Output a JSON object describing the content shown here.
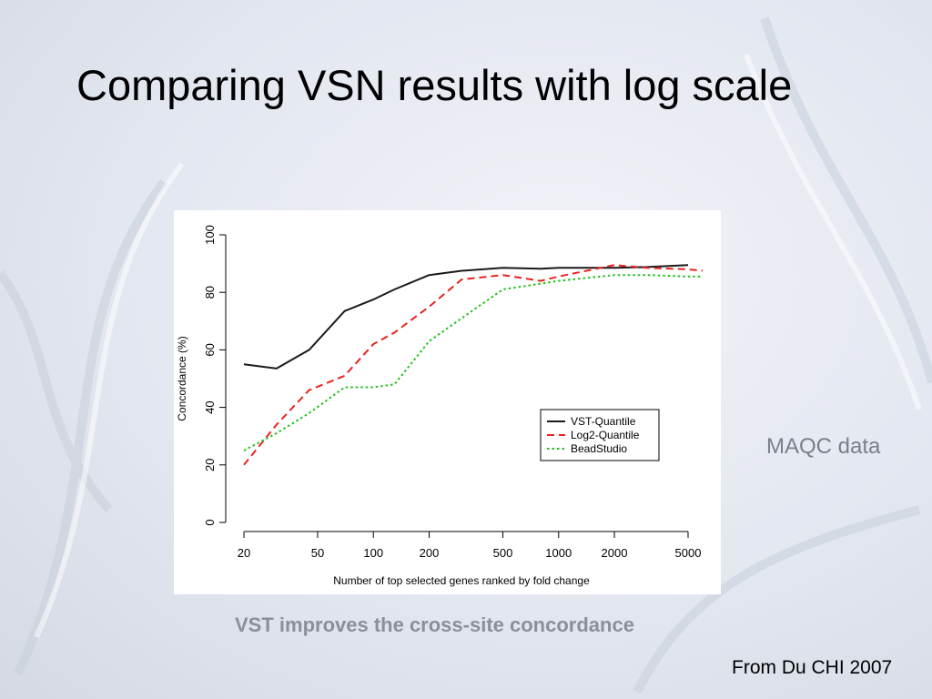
{
  "slide": {
    "title": "Comparing VSN results with log scale",
    "side_note": "MAQC data",
    "caption": "VST improves the cross-site concordance",
    "source": "From Du CHI 2007"
  },
  "chart_data": {
    "type": "line",
    "xlabel": "Number of top selected genes ranked by fold change",
    "ylabel": "Concordance (%)",
    "x_scale": "log",
    "xlim": [
      20,
      5000
    ],
    "ylim": [
      0,
      100
    ],
    "x_ticks": [
      20,
      50,
      100,
      200,
      500,
      1000,
      2000,
      5000
    ],
    "y_ticks": [
      0,
      20,
      40,
      60,
      80,
      100
    ],
    "grid": false,
    "legend_position": "center-right",
    "series": [
      {
        "name": "VST-Quantile",
        "color": "#1a1a1a",
        "dash": "solid",
        "x": [
          20,
          30,
          45,
          70,
          100,
          130,
          200,
          300,
          500,
          800,
          1000,
          2000,
          3000,
          5000
        ],
        "y": [
          55,
          53.5,
          60,
          73.5,
          77.5,
          81,
          86,
          87.5,
          88.5,
          88.2,
          88.5,
          88.5,
          88.8,
          89.5
        ]
      },
      {
        "name": "Log2-Quantile",
        "color": "#e8231e",
        "dash": "dashed",
        "x": [
          20,
          30,
          45,
          70,
          100,
          130,
          200,
          300,
          500,
          800,
          1000,
          2000,
          3000,
          5000,
          6000
        ],
        "y": [
          20,
          34,
          46,
          51,
          62,
          66,
          75,
          84.5,
          86,
          84,
          85.5,
          89.5,
          88.5,
          88,
          87.5
        ]
      },
      {
        "name": "BeadStudio",
        "color": "#22c11c",
        "dash": "dotted",
        "x": [
          20,
          30,
          45,
          70,
          100,
          130,
          200,
          300,
          500,
          800,
          1000,
          2000,
          3000,
          5000,
          6000
        ],
        "y": [
          25,
          31,
          38,
          47,
          47,
          48,
          63,
          71,
          81,
          83,
          84,
          86,
          86,
          85.5,
          85.5
        ]
      }
    ]
  }
}
